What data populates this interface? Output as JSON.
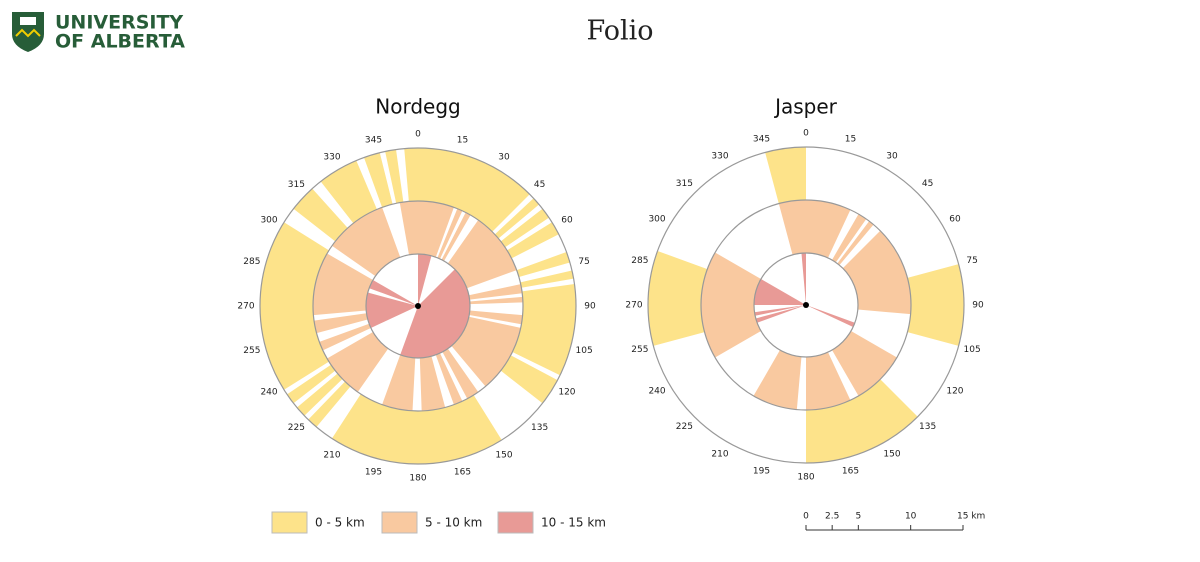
{
  "header": {
    "logo_line1": "UNIVERSITY",
    "logo_line2": "OF ALBERTA",
    "title": "Folio"
  },
  "legend": [
    {
      "name": "0 - 5 km",
      "color": "#fde38a"
    },
    {
      "name": "5 - 10 km",
      "color": "#f9c9a0"
    },
    {
      "name": "10 - 15 km",
      "color": "#e89a96"
    }
  ],
  "chart_data": [
    {
      "type": "polar",
      "title": "Nordegg",
      "angle_ticks": [
        0,
        15,
        30,
        45,
        60,
        75,
        90,
        105,
        120,
        135,
        150,
        165,
        180,
        195,
        210,
        225,
        240,
        255,
        270,
        285,
        300,
        315,
        330,
        345
      ],
      "rings": [
        {
          "sectors": [
            [
              355,
              45
            ],
            [
              47,
              50
            ],
            [
              52,
              56
            ],
            [
              58,
              63
            ],
            [
              70,
              74
            ],
            [
              77,
              80
            ],
            [
              82,
              116
            ],
            [
              118,
              128
            ],
            [
              148,
              213
            ],
            [
              220,
              224
            ],
            [
              226,
              230
            ],
            [
              232,
              236
            ],
            [
              238,
              302
            ],
            [
              308,
              318
            ],
            [
              322,
              337
            ],
            [
              340,
              346
            ],
            [
              348,
              352
            ]
          ]
        },
        {
          "sectors": [
            [
              350,
              20
            ],
            [
              22,
              25
            ],
            [
              27,
              30
            ],
            [
              35,
              70
            ],
            [
              78,
              83
            ],
            [
              85,
              88
            ],
            [
              95,
              100
            ],
            [
              102,
              140
            ],
            [
              145,
              152
            ],
            [
              155,
              160
            ],
            [
              165,
              178
            ],
            [
              183,
              200
            ],
            [
              215,
              240
            ],
            [
              245,
              250
            ],
            [
              255,
              262
            ],
            [
              265,
              300
            ],
            [
              305,
              340
            ]
          ]
        },
        {
          "sectors": [
            [
              0,
              15
            ],
            [
              45,
              200
            ],
            [
              245,
              285
            ],
            [
              290,
              300
            ]
          ]
        }
      ]
    },
    {
      "type": "polar",
      "title": "Jasper",
      "angle_ticks": [
        0,
        15,
        30,
        45,
        60,
        75,
        90,
        105,
        120,
        135,
        150,
        165,
        180,
        195,
        210,
        225,
        240,
        255,
        270,
        285,
        300,
        315,
        330,
        345
      ],
      "rings": [
        {
          "sectors": [
            [
              345,
              0
            ],
            [
              75,
              105
            ],
            [
              135,
              180
            ],
            [
              255,
              290
            ]
          ]
        },
        {
          "sectors": [
            [
              345,
              25
            ],
            [
              30,
              35
            ],
            [
              37,
              40
            ],
            [
              45,
              95
            ],
            [
              120,
              150
            ],
            [
              155,
              180
            ],
            [
              185,
              210
            ],
            [
              240,
              300
            ]
          ]
        },
        {
          "sectors": [
            [
              355,
              0
            ],
            [
              110,
              115
            ],
            [
              250,
              255
            ],
            [
              258,
              262
            ],
            [
              270,
              300
            ]
          ]
        }
      ]
    }
  ],
  "scale_bar": {
    "ticks": [
      0,
      2.5,
      5,
      10,
      {
        "value": 15,
        "label": "15 km"
      }
    ],
    "range": [
      0,
      15
    ]
  }
}
